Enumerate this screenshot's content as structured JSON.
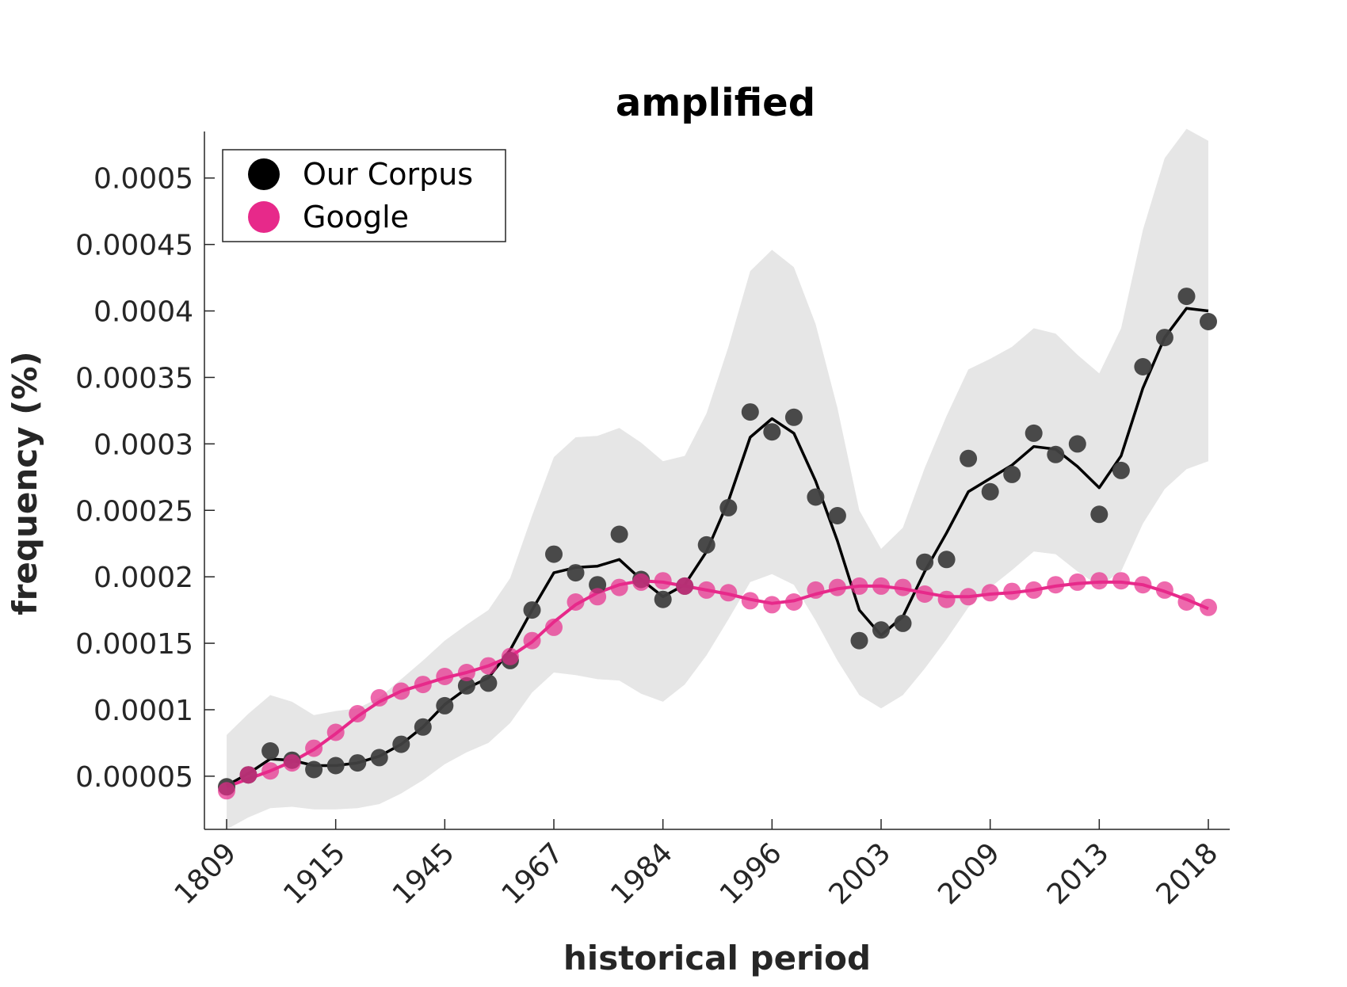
{
  "chart_data": {
    "type": "scatter",
    "title": "amplified",
    "xlabel": "historical period",
    "ylabel": "frequency (%)",
    "ylim": [
      1e-05,
      0.000535
    ],
    "yticks": [
      {
        "value": 5e-05,
        "label": "0.00005"
      },
      {
        "value": 0.0001,
        "label": "0.0001"
      },
      {
        "value": 0.00015,
        "label": "0.00015"
      },
      {
        "value": 0.0002,
        "label": "0.0002"
      },
      {
        "value": 0.00025,
        "label": "0.00025"
      },
      {
        "value": 0.0003,
        "label": "0.0003"
      },
      {
        "value": 0.00035,
        "label": "0.00035"
      },
      {
        "value": 0.0004,
        "label": "0.0004"
      },
      {
        "value": 0.00045,
        "label": "0.00045"
      },
      {
        "value": 0.0005,
        "label": "0.0005"
      }
    ],
    "xticks": [
      {
        "index": 0,
        "label": "1809"
      },
      {
        "index": 5,
        "label": "1915"
      },
      {
        "index": 10,
        "label": "1945"
      },
      {
        "index": 15,
        "label": "1967"
      },
      {
        "index": 20,
        "label": "1984"
      },
      {
        "index": 25,
        "label": "1996"
      },
      {
        "index": 30,
        "label": "2003"
      },
      {
        "index": 35,
        "label": "2009"
      },
      {
        "index": 40,
        "label": "2013"
      },
      {
        "index": 45,
        "label": "2018"
      }
    ],
    "legend_position": "top-left",
    "grid": false,
    "series": [
      {
        "name": "Our Corpus",
        "color": "#000000",
        "points": [
          4.2e-05,
          5.1e-05,
          6.9e-05,
          6.2e-05,
          5.5e-05,
          5.8e-05,
          6e-05,
          6.4e-05,
          7.4e-05,
          8.7e-05,
          0.000103,
          0.000118,
          0.00012,
          0.000137,
          0.000175,
          0.000217,
          0.000203,
          0.000194,
          0.000232,
          0.000198,
          0.000183,
          0.000193,
          0.000224,
          0.000252,
          0.000324,
          0.000309,
          0.00032,
          0.00026,
          0.000246,
          0.000152,
          0.00016,
          0.000165,
          0.000211,
          0.000213,
          0.000289,
          0.000264,
          0.000277,
          0.000308,
          0.000292,
          0.0003,
          0.000247,
          0.00028,
          0.000358,
          0.00038,
          0.000411,
          0.000392
        ],
        "fit": [
          4.3e-05,
          5.2e-05,
          6.3e-05,
          6.2e-05,
          5.8e-05,
          5.8e-05,
          6e-05,
          6.5e-05,
          7.4e-05,
          8.7e-05,
          0.000104,
          0.000116,
          0.000124,
          0.000145,
          0.000175,
          0.000203,
          0.000207,
          0.000208,
          0.000213,
          0.000198,
          0.000185,
          0.000194,
          0.000219,
          0.000257,
          0.000305,
          0.000319,
          0.000308,
          0.000272,
          0.000227,
          0.000175,
          0.000156,
          0.00017,
          0.000204,
          0.000233,
          0.000264,
          0.000274,
          0.000284,
          0.000298,
          0.000296,
          0.000283,
          0.000267,
          0.000291,
          0.000342,
          0.00038,
          0.000402,
          0.0004
        ],
        "ci_upper": [
          8.1e-05,
          9.7e-05,
          0.000111,
          0.000106,
          9.6e-05,
          9.9e-05,
          0.000101,
          0.000109,
          0.000123,
          0.000137,
          0.000152,
          0.000164,
          0.000175,
          0.000199,
          0.000246,
          0.00029,
          0.000305,
          0.000306,
          0.000312,
          0.000301,
          0.000287,
          0.000291,
          0.000323,
          0.000373,
          0.00043,
          0.000446,
          0.000433,
          0.00039,
          0.000327,
          0.00025,
          0.000221,
          0.000237,
          0.000282,
          0.000321,
          0.000356,
          0.000364,
          0.000373,
          0.000387,
          0.000383,
          0.000367,
          0.000353,
          0.000387,
          0.000461,
          0.000515,
          0.000537,
          0.000528
        ],
        "ci_lower": [
          1e-05,
          1.9e-05,
          2.6e-05,
          2.7e-05,
          2.5e-05,
          2.5e-05,
          2.6e-05,
          2.9e-05,
          3.7e-05,
          4.7e-05,
          5.9e-05,
          6.8e-05,
          7.5e-05,
          9e-05,
          0.000113,
          0.000128,
          0.000126,
          0.000123,
          0.000122,
          0.000112,
          0.000106,
          0.000119,
          0.000141,
          0.000168,
          0.000196,
          0.000202,
          0.000194,
          0.000167,
          0.000137,
          0.000111,
          0.000101,
          0.000111,
          0.000131,
          0.000153,
          0.000177,
          0.000192,
          0.000205,
          0.000219,
          0.000217,
          0.000204,
          0.000193,
          0.000204,
          0.00024,
          0.000266,
          0.000281,
          0.000287
        ]
      },
      {
        "name": "Google",
        "color": "#e7298a",
        "points": [
          3.9e-05,
          5.1e-05,
          5.4e-05,
          6e-05,
          7.1e-05,
          8.3e-05,
          9.7e-05,
          0.000109,
          0.000114,
          0.000119,
          0.000125,
          0.000128,
          0.000133,
          0.00014,
          0.000152,
          0.000162,
          0.000181,
          0.000185,
          0.000192,
          0.000196,
          0.000197,
          0.000193,
          0.00019,
          0.000188,
          0.000182,
          0.000179,
          0.000181,
          0.00019,
          0.000192,
          0.000193,
          0.000193,
          0.000192,
          0.000187,
          0.000183,
          0.000185,
          0.000188,
          0.000189,
          0.00019,
          0.000194,
          0.000196,
          0.000197,
          0.000197,
          0.000194,
          0.00019,
          0.000181,
          0.000177
        ],
        "fit": [
          4.2e-05,
          4.8e-05,
          5.4e-05,
          6.1e-05,
          7e-05,
          8.2e-05,
          9.5e-05,
          0.000106,
          0.000114,
          0.000119,
          0.000124,
          0.000128,
          0.000133,
          0.00014,
          0.000151,
          0.000166,
          0.000179,
          0.000188,
          0.000194,
          0.000197,
          0.000196,
          0.000193,
          0.00019,
          0.000187,
          0.000183,
          0.00018,
          0.000182,
          0.000187,
          0.000191,
          0.000193,
          0.000193,
          0.000191,
          0.000188,
          0.000185,
          0.000185,
          0.000187,
          0.000188,
          0.00019,
          0.000193,
          0.000195,
          0.000196,
          0.000196,
          0.000194,
          0.000189,
          0.000183,
          0.000176
        ]
      }
    ]
  }
}
